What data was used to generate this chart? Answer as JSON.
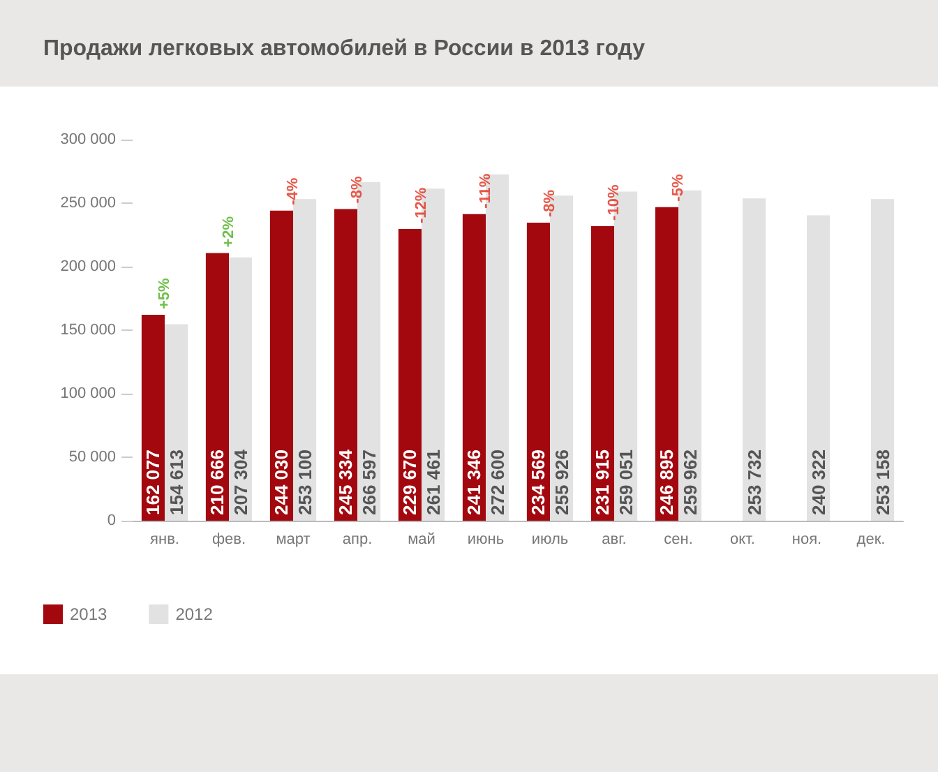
{
  "chart_data": {
    "type": "bar",
    "title": "Продажи легковых автомобилей в России в 2013 году",
    "categories": [
      "янв.",
      "фев.",
      "март",
      "апр.",
      "май",
      "июнь",
      "июль",
      "авг.",
      "сен.",
      "окт.",
      "ноя.",
      "дек."
    ],
    "series": [
      {
        "name": "2013",
        "color": "#a3080f",
        "values": [
          162077,
          210666,
          244030,
          245334,
          229670,
          241346,
          234569,
          231915,
          246895,
          null,
          null,
          null
        ],
        "value_labels": [
          "162 077",
          "210 666",
          "244 030",
          "245 334",
          "229 670",
          "241 346",
          "234 569",
          "231 915",
          "246 895",
          null,
          null,
          null
        ]
      },
      {
        "name": "2012",
        "color": "#e2e2e2",
        "values": [
          154613,
          207304,
          253100,
          266597,
          261461,
          272600,
          255926,
          259051,
          259962,
          253732,
          240322,
          253158
        ],
        "value_labels": [
          "154 613",
          "207 304",
          "253 100",
          "266 597",
          "261 461",
          "272 600",
          "255 926",
          "259 051",
          "259 962",
          "253 732",
          "240 322",
          "253 158"
        ]
      }
    ],
    "ylim": [
      0,
      300000
    ],
    "yticks": [
      {
        "value": 0,
        "label": "0"
      },
      {
        "value": 50000,
        "label": "50 000"
      },
      {
        "value": 100000,
        "label": "100 000"
      },
      {
        "value": 150000,
        "label": "150 000"
      },
      {
        "value": 200000,
        "label": "200 000"
      },
      {
        "value": 250000,
        "label": "250 000"
      },
      {
        "value": 300000,
        "label": "300 000"
      }
    ],
    "annotations": [
      {
        "text": "+5%",
        "x": "янв.",
        "y": 162077
      },
      {
        "text": "+2%",
        "x": "фев.",
        "y": 210666
      },
      {
        "text": "-4%",
        "x": "март",
        "y": 244030
      },
      {
        "text": "-8%",
        "x": "апр.",
        "y": 245334
      },
      {
        "text": "-12%",
        "x": "май",
        "y": 229670
      },
      {
        "text": "-11%",
        "x": "июнь",
        "y": 241346
      },
      {
        "text": "-8%",
        "x": "июль",
        "y": 234569
      },
      {
        "text": "-10%",
        "x": "авг.",
        "y": 231915
      },
      {
        "text": "-5%",
        "x": "сен.",
        "y": 246895
      }
    ],
    "grid": false,
    "legend": "bottom left"
  }
}
